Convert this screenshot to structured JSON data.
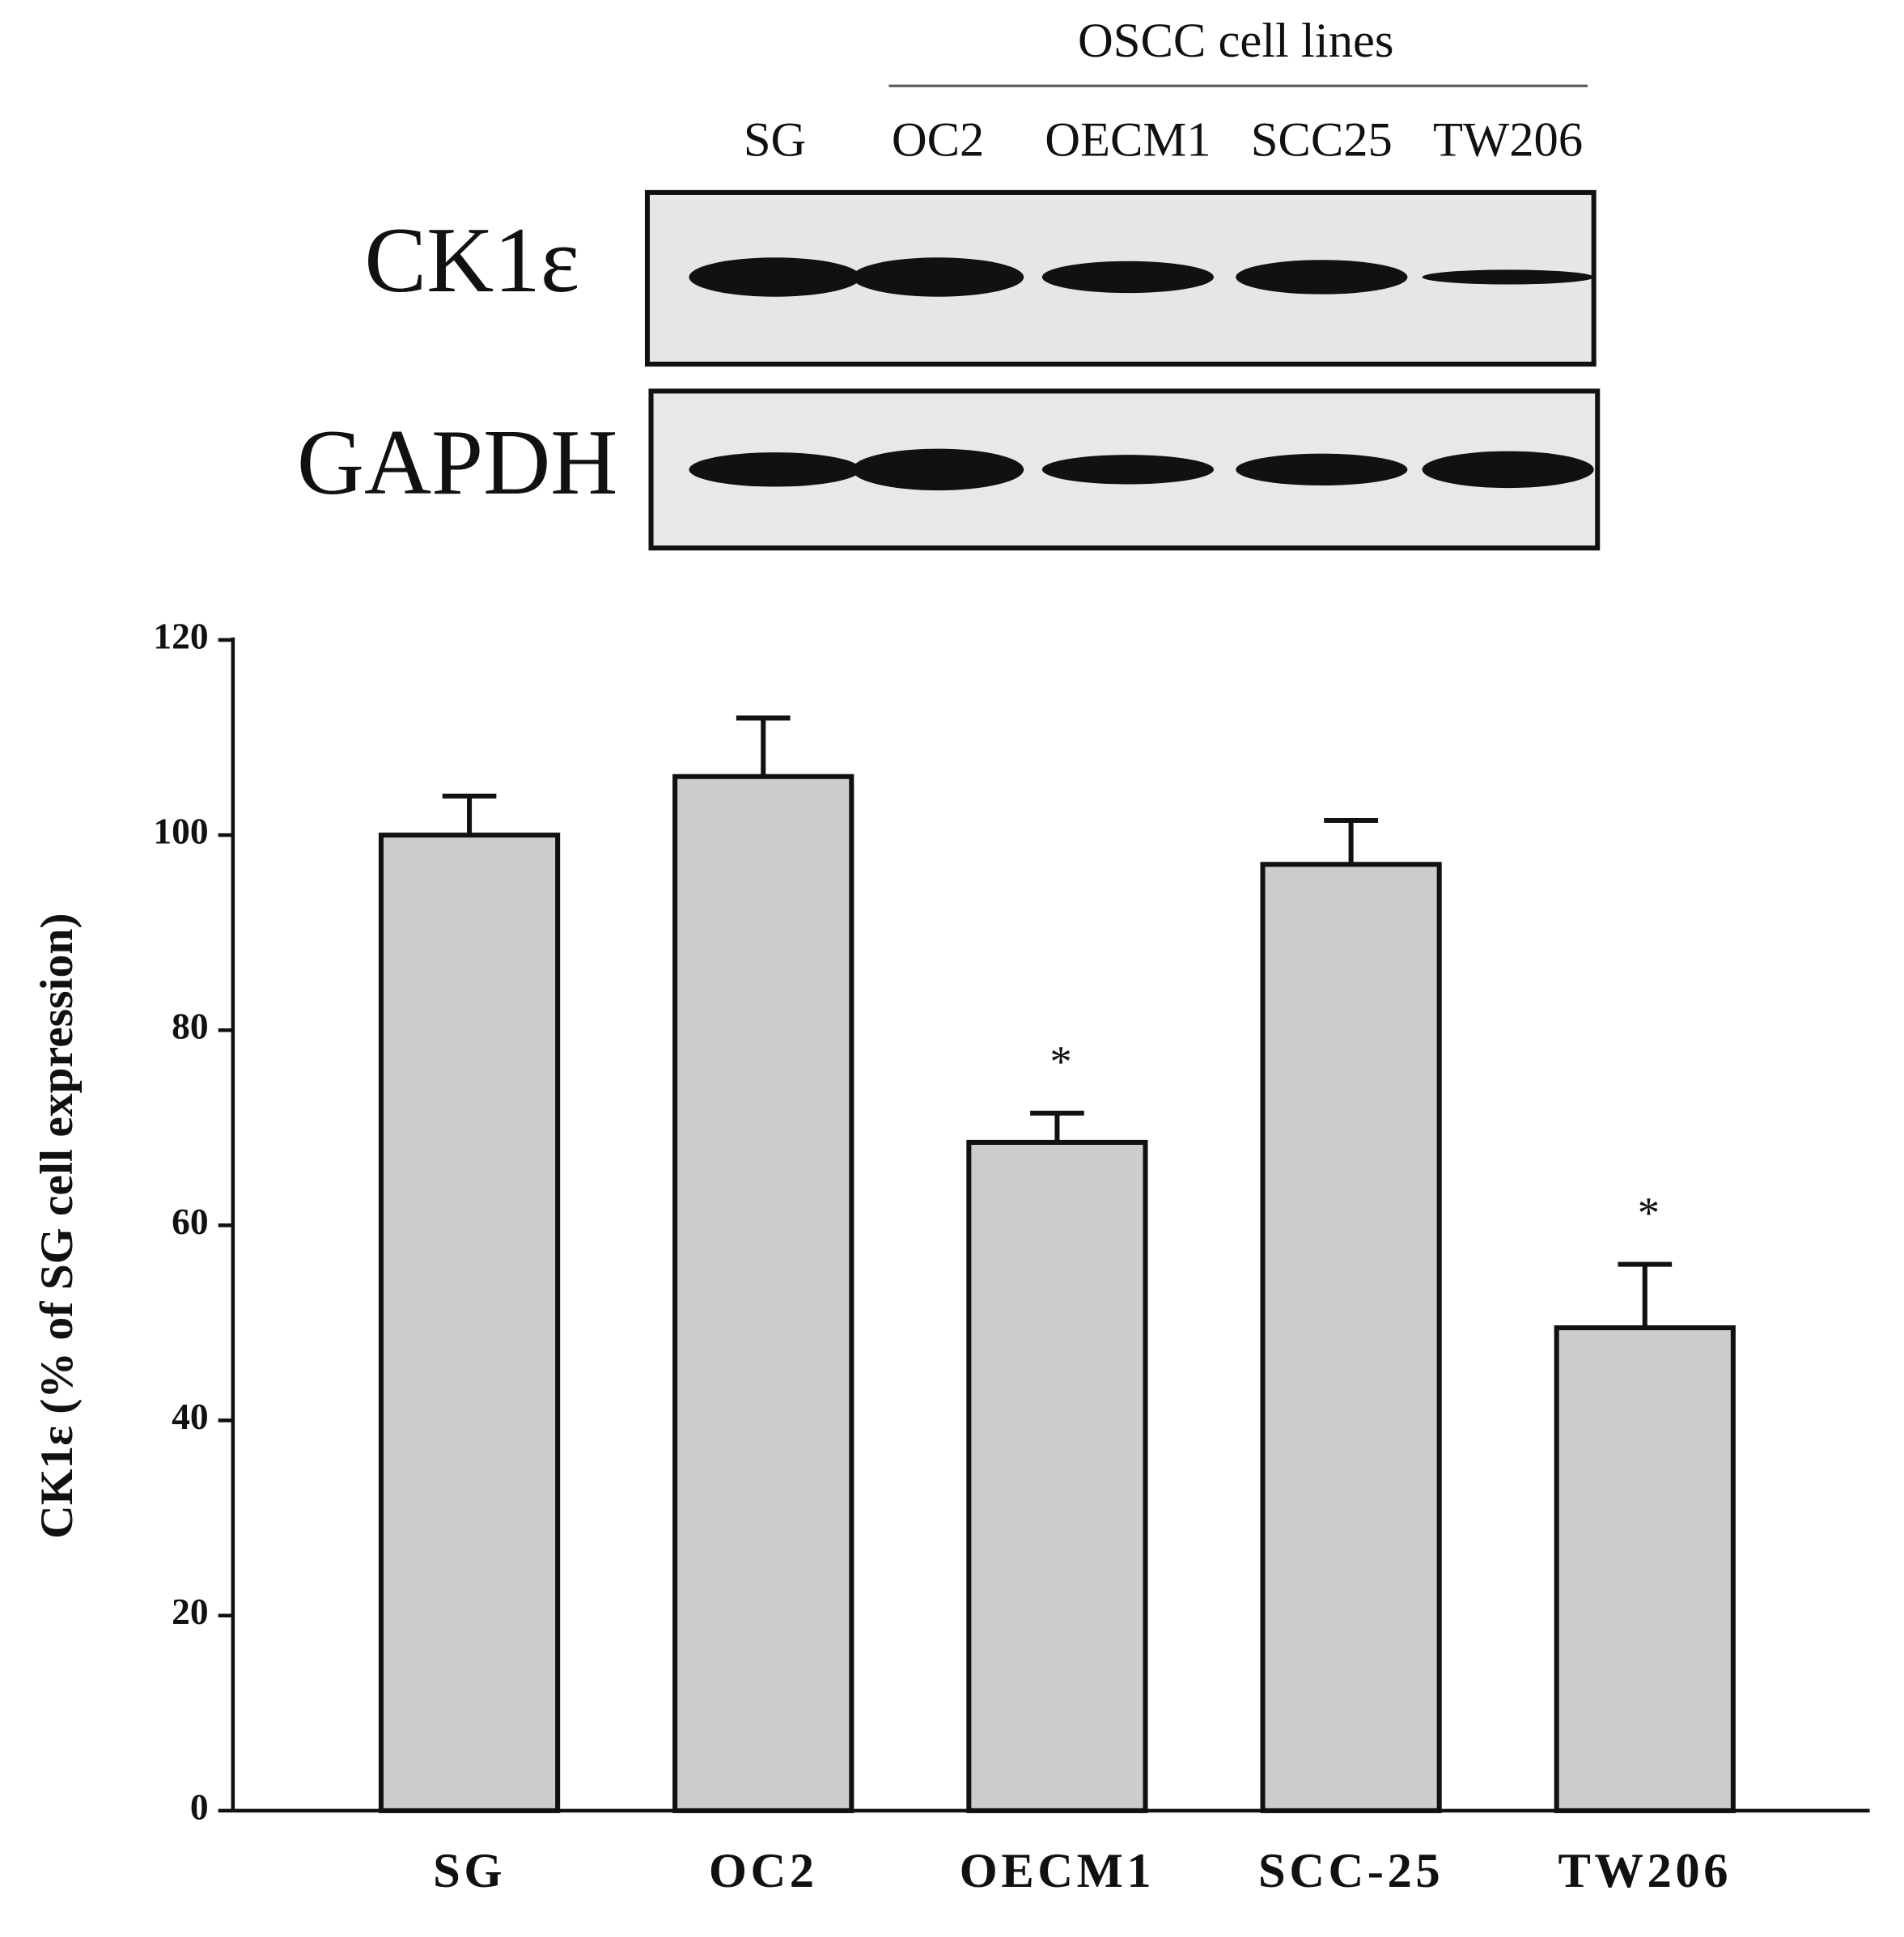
{
  "blot": {
    "group_label": "OSCC cell lines",
    "lanes": [
      "SG",
      "OC2",
      "OECM1",
      "SCC25",
      "TW206"
    ],
    "rows": [
      "CK1ε",
      "GAPDH"
    ]
  },
  "chart_data": {
    "type": "bar",
    "y_label": "CK1ε (% of SG cell expression)",
    "categories": [
      "SG",
      "OC2",
      "OECM1",
      "SCC-25",
      "TW206"
    ],
    "values": [
      100,
      106,
      68.5,
      97,
      49.5
    ],
    "errors": [
      4,
      6,
      3,
      4.5,
      6.5
    ],
    "color": "#cccccc",
    "ylim": [
      0,
      120
    ],
    "yticks": [
      0,
      20,
      40,
      60,
      80,
      100,
      120
    ],
    "annotations": [
      {
        "text": "*",
        "x": "OECM1"
      },
      {
        "text": "*",
        "x": "TW206"
      }
    ]
  }
}
